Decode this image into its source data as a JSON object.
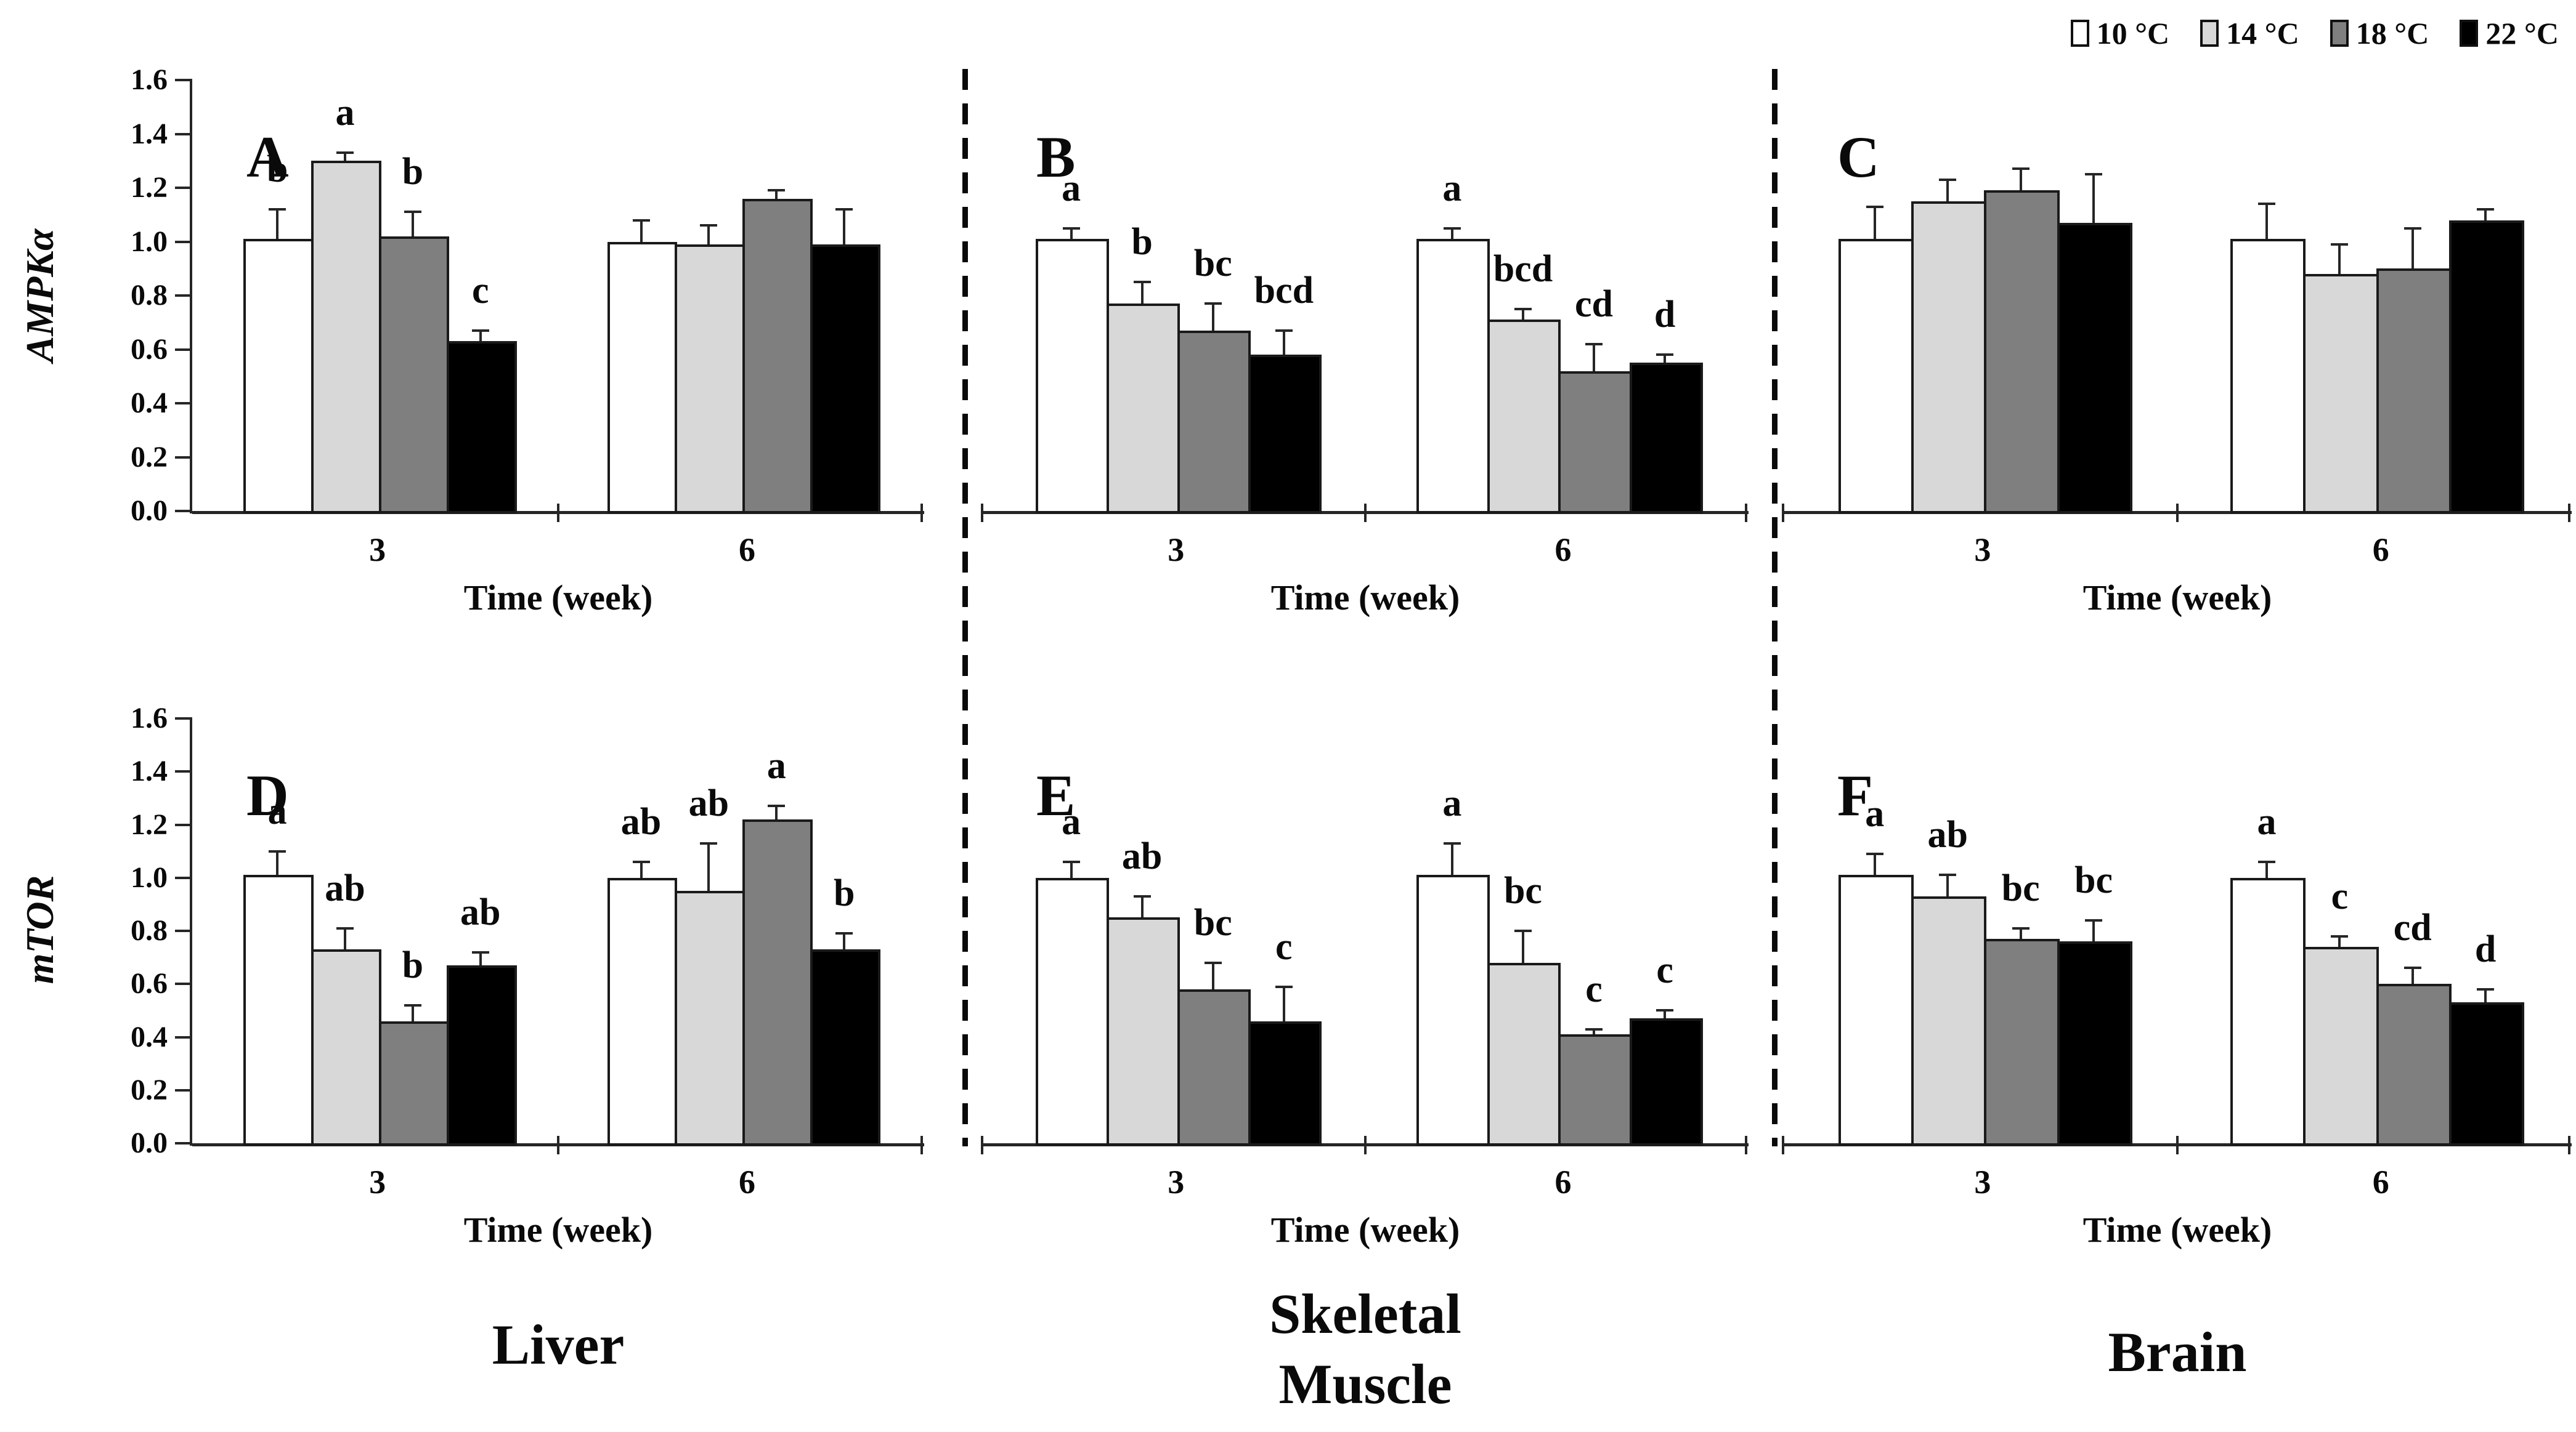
{
  "legend": {
    "items": [
      {
        "label": "10 °C",
        "color": "#ffffff"
      },
      {
        "label": "14 °C",
        "color": "#d8d8d8"
      },
      {
        "label": "18 °C",
        "color": "#7f7f7f"
      },
      {
        "label": "22 °C",
        "color": "#000000"
      }
    ]
  },
  "row_labels": [
    {
      "text": "AMPKα"
    },
    {
      "text": "mTOR"
    }
  ],
  "col_labels": [
    {
      "lines": [
        "Liver"
      ]
    },
    {
      "lines": [
        "Skeletal",
        "Muscle"
      ]
    },
    {
      "lines": [
        "Brain"
      ]
    }
  ],
  "axis": {
    "y_ticks": [
      "0.0",
      "0.2",
      "0.4",
      "0.6",
      "0.8",
      "1.0",
      "1.2",
      "1.4",
      "1.6"
    ],
    "y_max": 1.6,
    "x_categories": [
      "3",
      "6"
    ],
    "x_title": "Time (week)"
  },
  "chart_data": [
    {
      "type": "bar",
      "panel": "A",
      "gene": "AMPKα",
      "tissue": "Liver",
      "row": 0,
      "col": 0,
      "ylim": [
        0,
        1.6
      ],
      "series_names": [
        "10 °C",
        "14 °C",
        "18 °C",
        "22 °C"
      ],
      "groups": [
        {
          "category": "3",
          "bars": [
            {
              "series": "10 °C",
              "value": 1.01,
              "error": 0.11,
              "letter": "b"
            },
            {
              "series": "14 °C",
              "value": 1.3,
              "error": 0.03,
              "letter": "a"
            },
            {
              "series": "18 °C",
              "value": 1.02,
              "error": 0.09,
              "letter": "b"
            },
            {
              "series": "22 °C",
              "value": 0.63,
              "error": 0.04,
              "letter": "c"
            }
          ]
        },
        {
          "category": "6",
          "bars": [
            {
              "series": "10 °C",
              "value": 1.0,
              "error": 0.08,
              "letter": null
            },
            {
              "series": "14 °C",
              "value": 0.99,
              "error": 0.07,
              "letter": null
            },
            {
              "series": "18 °C",
              "value": 1.16,
              "error": 0.03,
              "letter": null
            },
            {
              "series": "22 °C",
              "value": 0.99,
              "error": 0.13,
              "letter": null
            }
          ]
        }
      ]
    },
    {
      "type": "bar",
      "panel": "B",
      "gene": "AMPKα",
      "tissue": "Skeletal Muscle",
      "row": 0,
      "col": 1,
      "ylim": [
        0,
        1.6
      ],
      "series_names": [
        "10 °C",
        "14 °C",
        "18 °C",
        "22 °C"
      ],
      "groups": [
        {
          "category": "3",
          "bars": [
            {
              "series": "10 °C",
              "value": 1.01,
              "error": 0.04,
              "letter": "a"
            },
            {
              "series": "14 °C",
              "value": 0.77,
              "error": 0.08,
              "letter": "b"
            },
            {
              "series": "18 °C",
              "value": 0.67,
              "error": 0.1,
              "letter": "bc"
            },
            {
              "series": "22 °C",
              "value": 0.58,
              "error": 0.09,
              "letter": "bcd"
            }
          ]
        },
        {
          "category": "6",
          "bars": [
            {
              "series": "10 °C",
              "value": 1.01,
              "error": 0.04,
              "letter": "a"
            },
            {
              "series": "14 °C",
              "value": 0.71,
              "error": 0.04,
              "letter": "bcd"
            },
            {
              "series": "18 °C",
              "value": 0.52,
              "error": 0.1,
              "letter": "cd"
            },
            {
              "series": "22 °C",
              "value": 0.55,
              "error": 0.03,
              "letter": "d"
            }
          ]
        }
      ]
    },
    {
      "type": "bar",
      "panel": "C",
      "gene": "AMPKα",
      "tissue": "Brain",
      "row": 0,
      "col": 2,
      "ylim": [
        0,
        1.6
      ],
      "series_names": [
        "10 °C",
        "14 °C",
        "18 °C",
        "22 °C"
      ],
      "groups": [
        {
          "category": "3",
          "bars": [
            {
              "series": "10 °C",
              "value": 1.01,
              "error": 0.12,
              "letter": null
            },
            {
              "series": "14 °C",
              "value": 1.15,
              "error": 0.08,
              "letter": null
            },
            {
              "series": "18 °C",
              "value": 1.19,
              "error": 0.08,
              "letter": null
            },
            {
              "series": "22 °C",
              "value": 1.07,
              "error": 0.18,
              "letter": null
            }
          ]
        },
        {
          "category": "6",
          "bars": [
            {
              "series": "10 °C",
              "value": 1.01,
              "error": 0.13,
              "letter": null
            },
            {
              "series": "14 °C",
              "value": 0.88,
              "error": 0.11,
              "letter": null
            },
            {
              "series": "18 °C",
              "value": 0.9,
              "error": 0.15,
              "letter": null
            },
            {
              "series": "22 °C",
              "value": 1.08,
              "error": 0.04,
              "letter": null
            }
          ]
        }
      ]
    },
    {
      "type": "bar",
      "panel": "D",
      "gene": "mTOR",
      "tissue": "Liver",
      "row": 1,
      "col": 0,
      "ylim": [
        0,
        1.6
      ],
      "series_names": [
        "10 °C",
        "14 °C",
        "18 °C",
        "22 °C"
      ],
      "groups": [
        {
          "category": "3",
          "bars": [
            {
              "series": "10 °C",
              "value": 1.01,
              "error": 0.09,
              "letter": "a"
            },
            {
              "series": "14 °C",
              "value": 0.73,
              "error": 0.08,
              "letter": "ab"
            },
            {
              "series": "18 °C",
              "value": 0.46,
              "error": 0.06,
              "letter": "b"
            },
            {
              "series": "22 °C",
              "value": 0.67,
              "error": 0.05,
              "letter": "ab"
            }
          ]
        },
        {
          "category": "6",
          "bars": [
            {
              "series": "10 °C",
              "value": 1.0,
              "error": 0.06,
              "letter": "ab"
            },
            {
              "series": "14 °C",
              "value": 0.95,
              "error": 0.18,
              "letter": "ab"
            },
            {
              "series": "18 °C",
              "value": 1.22,
              "error": 0.05,
              "letter": "a"
            },
            {
              "series": "22 °C",
              "value": 0.73,
              "error": 0.06,
              "letter": "b"
            }
          ]
        }
      ]
    },
    {
      "type": "bar",
      "panel": "E",
      "gene": "mTOR",
      "tissue": "Skeletal Muscle",
      "row": 1,
      "col": 1,
      "ylim": [
        0,
        1.6
      ],
      "series_names": [
        "10 °C",
        "14 °C",
        "18 °C",
        "22 °C"
      ],
      "groups": [
        {
          "category": "3",
          "bars": [
            {
              "series": "10 °C",
              "value": 1.0,
              "error": 0.06,
              "letter": "a"
            },
            {
              "series": "14 °C",
              "value": 0.85,
              "error": 0.08,
              "letter": "ab"
            },
            {
              "series": "18 °C",
              "value": 0.58,
              "error": 0.1,
              "letter": "bc"
            },
            {
              "series": "22 °C",
              "value": 0.46,
              "error": 0.13,
              "letter": "c"
            }
          ]
        },
        {
          "category": "6",
          "bars": [
            {
              "series": "10 °C",
              "value": 1.01,
              "error": 0.12,
              "letter": "a"
            },
            {
              "series": "14 °C",
              "value": 0.68,
              "error": 0.12,
              "letter": "bc"
            },
            {
              "series": "18 °C",
              "value": 0.41,
              "error": 0.02,
              "letter": "c"
            },
            {
              "series": "22 °C",
              "value": 0.47,
              "error": 0.03,
              "letter": "c"
            }
          ]
        }
      ]
    },
    {
      "type": "bar",
      "panel": "F",
      "gene": "mTOR",
      "tissue": "Brain",
      "row": 1,
      "col": 2,
      "ylim": [
        0,
        1.6
      ],
      "series_names": [
        "10 °C",
        "14 °C",
        "18 °C",
        "22 °C"
      ],
      "groups": [
        {
          "category": "3",
          "bars": [
            {
              "series": "10 °C",
              "value": 1.01,
              "error": 0.08,
              "letter": "a"
            },
            {
              "series": "14 °C",
              "value": 0.93,
              "error": 0.08,
              "letter": "ab"
            },
            {
              "series": "18 °C",
              "value": 0.77,
              "error": 0.04,
              "letter": "bc"
            },
            {
              "series": "22 °C",
              "value": 0.76,
              "error": 0.08,
              "letter": "bc"
            }
          ]
        },
        {
          "category": "6",
          "bars": [
            {
              "series": "10 °C",
              "value": 1.0,
              "error": 0.06,
              "letter": "a"
            },
            {
              "series": "14 °C",
              "value": 0.74,
              "error": 0.04,
              "letter": "c"
            },
            {
              "series": "18 °C",
              "value": 0.6,
              "error": 0.06,
              "letter": "cd"
            },
            {
              "series": "22 °C",
              "value": 0.53,
              "error": 0.05,
              "letter": "d"
            }
          ]
        }
      ]
    }
  ]
}
